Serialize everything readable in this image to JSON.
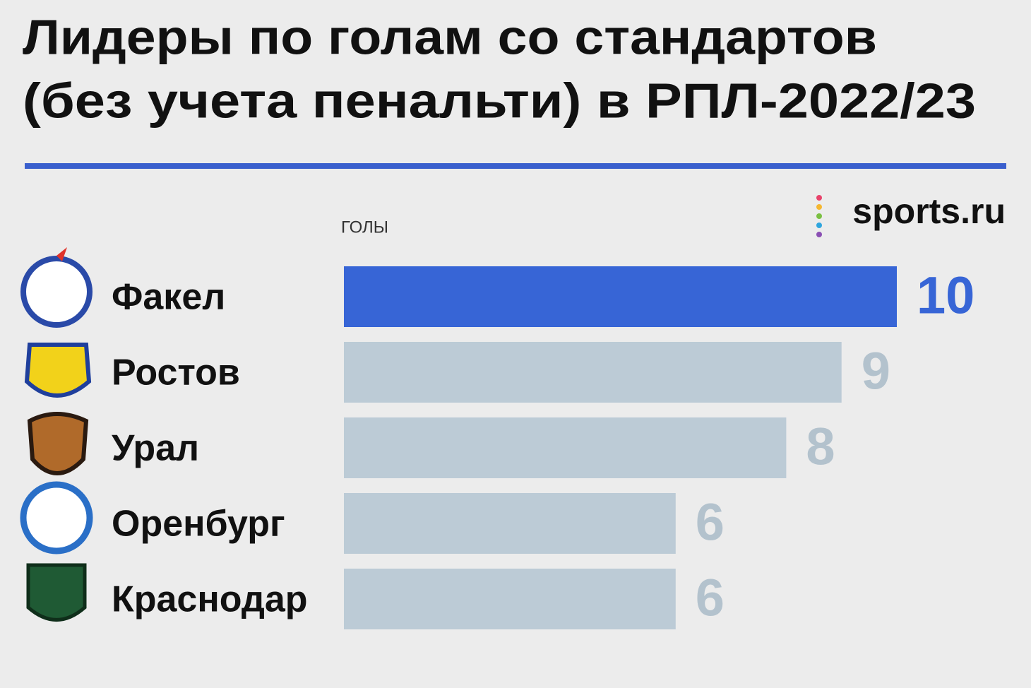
{
  "chart_data": {
    "type": "hbar",
    "title": [
      "Лидеры по голам со стандартов",
      "(без учета пенальти) в РПЛ-2022/23"
    ],
    "x_label": "ГОЛЫ",
    "source": "sports.ru",
    "categories": [
      "Факел",
      "Ростов",
      "Урал",
      "Оренбург",
      "Краснодар"
    ],
    "values": [
      10,
      9,
      8,
      6,
      6
    ],
    "colors": [
      "#3765d6",
      "#bccbd6",
      "#bccbd6",
      "#bccbd6",
      "#bccbd6"
    ],
    "label_colors": [
      "#3765d6",
      "#b3c2cd",
      "#b3c2cd",
      "#b3c2cd",
      "#b3c2cd"
    ],
    "xlim": [
      0,
      10
    ]
  }
}
